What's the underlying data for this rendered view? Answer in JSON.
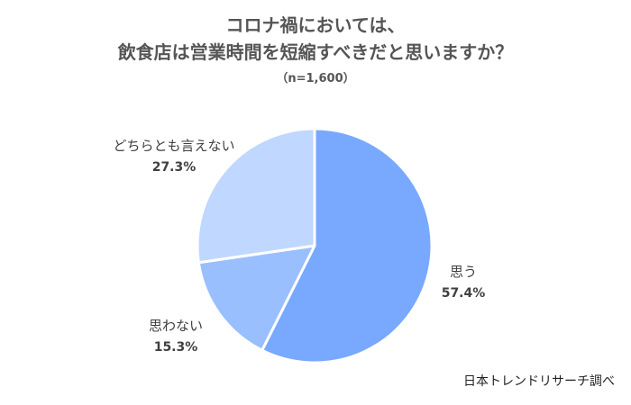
{
  "chart_data": {
    "type": "pie",
    "title_line1": "コロナ禍においては、",
    "title_line2": "飲食店は営業時間を短縮すべきだと思いますか？",
    "subtitle": "（n=1,600）",
    "slices": [
      {
        "label": "思う",
        "value": 57.4,
        "value_label": "57.4%",
        "color": "#78a9ff"
      },
      {
        "label": "思わない",
        "value": 15.3,
        "value_label": "15.3%",
        "color": "#99bfff"
      },
      {
        "label": "どちらとも言えない",
        "value": 27.3,
        "value_label": "27.3%",
        "color": "#c0d7ff"
      }
    ]
  },
  "source": "日本トレンドリサーチ調べ"
}
